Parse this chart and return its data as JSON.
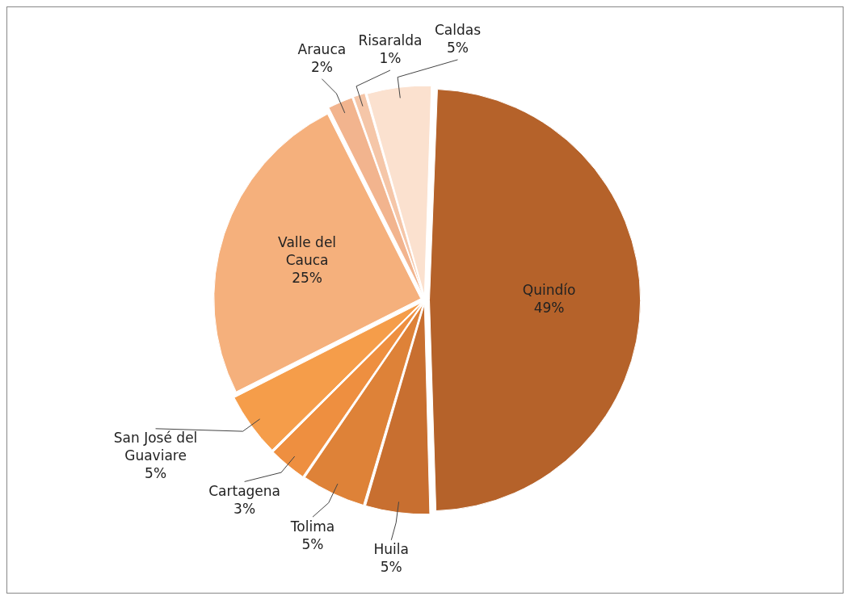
{
  "chart_data": {
    "type": "pie",
    "categories": [
      "Quindío",
      "Huila",
      "Tolima",
      "Cartagena",
      "San José del Guaviare",
      "Valle del Cauca",
      "Arauca",
      "Risaralda",
      "Caldas"
    ],
    "values": [
      49,
      5,
      5,
      3,
      5,
      25,
      2,
      1,
      5
    ],
    "value_labels": [
      "49%",
      "5%",
      "5%",
      "3%",
      "5%",
      "25%",
      "2%",
      "1%",
      "5%"
    ],
    "colors": [
      "#b5622a",
      "#c86f30",
      "#de8238",
      "#ee8f40",
      "#f59d4a",
      "#f5b07c",
      "#f2b48e",
      "#f5c6a8",
      "#fbe1cf"
    ],
    "legend": false
  }
}
